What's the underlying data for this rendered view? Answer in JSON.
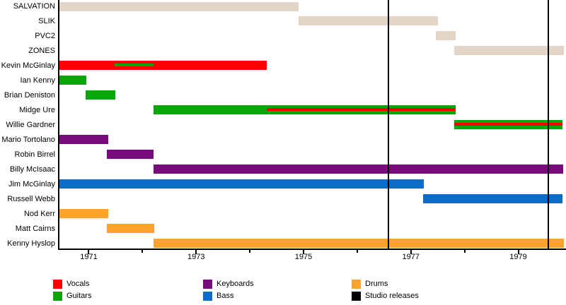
{
  "chart_data": {
    "type": "timeline",
    "title": "",
    "x_axis": {
      "min": 1970.44,
      "max": 1979.85,
      "tick_years": [
        1971,
        1972,
        1973,
        1974,
        1975,
        1976,
        1977,
        1978,
        1979
      ],
      "labeled_years": [
        "1971",
        "1973",
        "1975",
        "1977",
        "1979"
      ]
    },
    "colors": {
      "vocals": "#fe0000",
      "guitars": "#09a609",
      "keyboards": "#770b7c",
      "bass": "#0b6dc9",
      "drums": "#fba32d",
      "band": "#e2d4c7",
      "studio": "#000000"
    },
    "rows": [
      {
        "label": "SALVATION",
        "bars": [
          {
            "role": "band",
            "start": 1970.44,
            "end": 1974.91
          }
        ]
      },
      {
        "label": "SLIK",
        "bars": [
          {
            "role": "band",
            "start": 1974.91,
            "end": 1977.5
          }
        ]
      },
      {
        "label": "PVC2",
        "bars": [
          {
            "role": "band",
            "start": 1977.47,
            "end": 1977.84
          }
        ]
      },
      {
        "label": "ZONES",
        "bars": [
          {
            "role": "band",
            "start": 1977.81,
            "end": 1979.85
          }
        ]
      },
      {
        "label": "Kevin McGinlay",
        "bars": [
          {
            "role": "vocals",
            "start": 1970.44,
            "end": 1974.31,
            "stripe": {
              "role": "guitars",
              "start": 1971.48,
              "end": 1972.21
            }
          }
        ]
      },
      {
        "label": "Ian Kenny",
        "bars": [
          {
            "role": "guitars",
            "start": 1970.44,
            "end": 1970.95
          }
        ]
      },
      {
        "label": "Brian Deniston",
        "bars": [
          {
            "role": "guitars",
            "start": 1970.94,
            "end": 1971.5
          }
        ]
      },
      {
        "label": "Midge Ure",
        "bars": [
          {
            "role": "guitars",
            "start": 1972.21,
            "end": 1977.84,
            "stripe": {
              "role": "vocals",
              "start": 1974.31,
              "end": 1977.84
            }
          }
        ]
      },
      {
        "label": "Willie Gardner",
        "bars": [
          {
            "role": "guitars",
            "start": 1977.81,
            "end": 1979.82,
            "stripe": {
              "role": "vocals",
              "start": 1977.81,
              "end": 1979.82
            }
          }
        ]
      },
      {
        "label": "Mario Tortolano",
        "bars": [
          {
            "role": "keyboards",
            "start": 1970.44,
            "end": 1971.36
          }
        ]
      },
      {
        "label": "Robin Birrel",
        "bars": [
          {
            "role": "keyboards",
            "start": 1971.34,
            "end": 1972.21
          }
        ]
      },
      {
        "label": "Billy McIsaac",
        "bars": [
          {
            "role": "keyboards",
            "start": 1972.2,
            "end": 1979.84
          }
        ]
      },
      {
        "label": "Jim McGinlay",
        "bars": [
          {
            "role": "bass",
            "start": 1970.44,
            "end": 1977.24
          }
        ]
      },
      {
        "label": "Russell Webb",
        "bars": [
          {
            "role": "bass",
            "start": 1977.23,
            "end": 1979.82
          }
        ]
      },
      {
        "label": "Nod Kerr",
        "bars": [
          {
            "role": "drums",
            "start": 1970.44,
            "end": 1971.36
          }
        ]
      },
      {
        "label": "Matt Cairns",
        "bars": [
          {
            "role": "drums",
            "start": 1971.33,
            "end": 1972.22
          }
        ]
      },
      {
        "label": "Kenny Hyslop",
        "bars": [
          {
            "role": "drums",
            "start": 1972.2,
            "end": 1979.85
          }
        ]
      }
    ],
    "events": [
      {
        "name": "studio-release",
        "year": 1976.58
      },
      {
        "name": "studio-release",
        "year": 1979.56
      }
    ],
    "legend": {
      "position": "bottom",
      "items": [
        {
          "label": "Vocals",
          "role": "vocals"
        },
        {
          "label": "Guitars",
          "role": "guitars"
        },
        {
          "label": "Keyboards",
          "role": "keyboards"
        },
        {
          "label": "Bass",
          "role": "bass"
        },
        {
          "label": "Drums",
          "role": "drums"
        },
        {
          "label": "Studio releases",
          "role": "studio"
        }
      ]
    }
  }
}
